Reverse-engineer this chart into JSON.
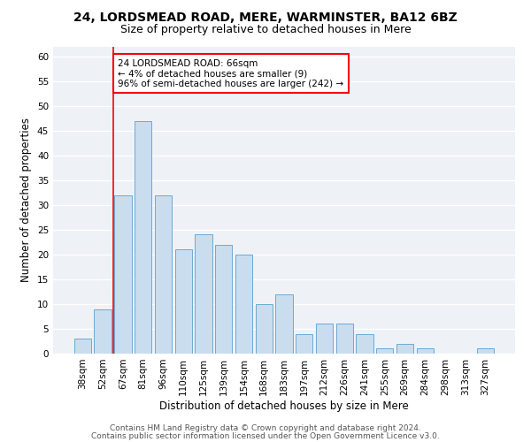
{
  "title_line1": "24, LORDSMEAD ROAD, MERE, WARMINSTER, BA12 6BZ",
  "title_line2": "Size of property relative to detached houses in Mere",
  "xlabel": "Distribution of detached houses by size in Mere",
  "ylabel": "Number of detached properties",
  "categories": [
    "38sqm",
    "52sqm",
    "67sqm",
    "81sqm",
    "96sqm",
    "110sqm",
    "125sqm",
    "139sqm",
    "154sqm",
    "168sqm",
    "183sqm",
    "197sqm",
    "212sqm",
    "226sqm",
    "241sqm",
    "255sqm",
    "269sqm",
    "284sqm",
    "298sqm",
    "313sqm",
    "327sqm"
  ],
  "values": [
    3,
    9,
    32,
    47,
    32,
    21,
    24,
    22,
    20,
    10,
    12,
    4,
    6,
    6,
    4,
    1,
    2,
    1,
    0,
    0,
    1
  ],
  "bar_color": "#c9ddef",
  "bar_edge_color": "#6aaad4",
  "annotation_box_text": "24 LORDSMEAD ROAD: 66sqm\n← 4% of detached houses are smaller (9)\n96% of semi-detached houses are larger (242) →",
  "annotation_box_facecolor": "white",
  "annotation_box_edgecolor": "red",
  "vline_x": 1.5,
  "vline_color": "red",
  "ylim": [
    0,
    62
  ],
  "yticks": [
    0,
    5,
    10,
    15,
    20,
    25,
    30,
    35,
    40,
    45,
    50,
    55,
    60
  ],
  "footer_line1": "Contains HM Land Registry data © Crown copyright and database right 2024.",
  "footer_line2": "Contains public sector information licensed under the Open Government Licence v3.0.",
  "bg_color": "#eef2f7",
  "title1_fontsize": 10,
  "title2_fontsize": 9,
  "tick_fontsize": 7.5,
  "ylabel_fontsize": 8.5,
  "xlabel_fontsize": 8.5,
  "annot_fontsize": 7.5,
  "footer_fontsize": 6.5
}
